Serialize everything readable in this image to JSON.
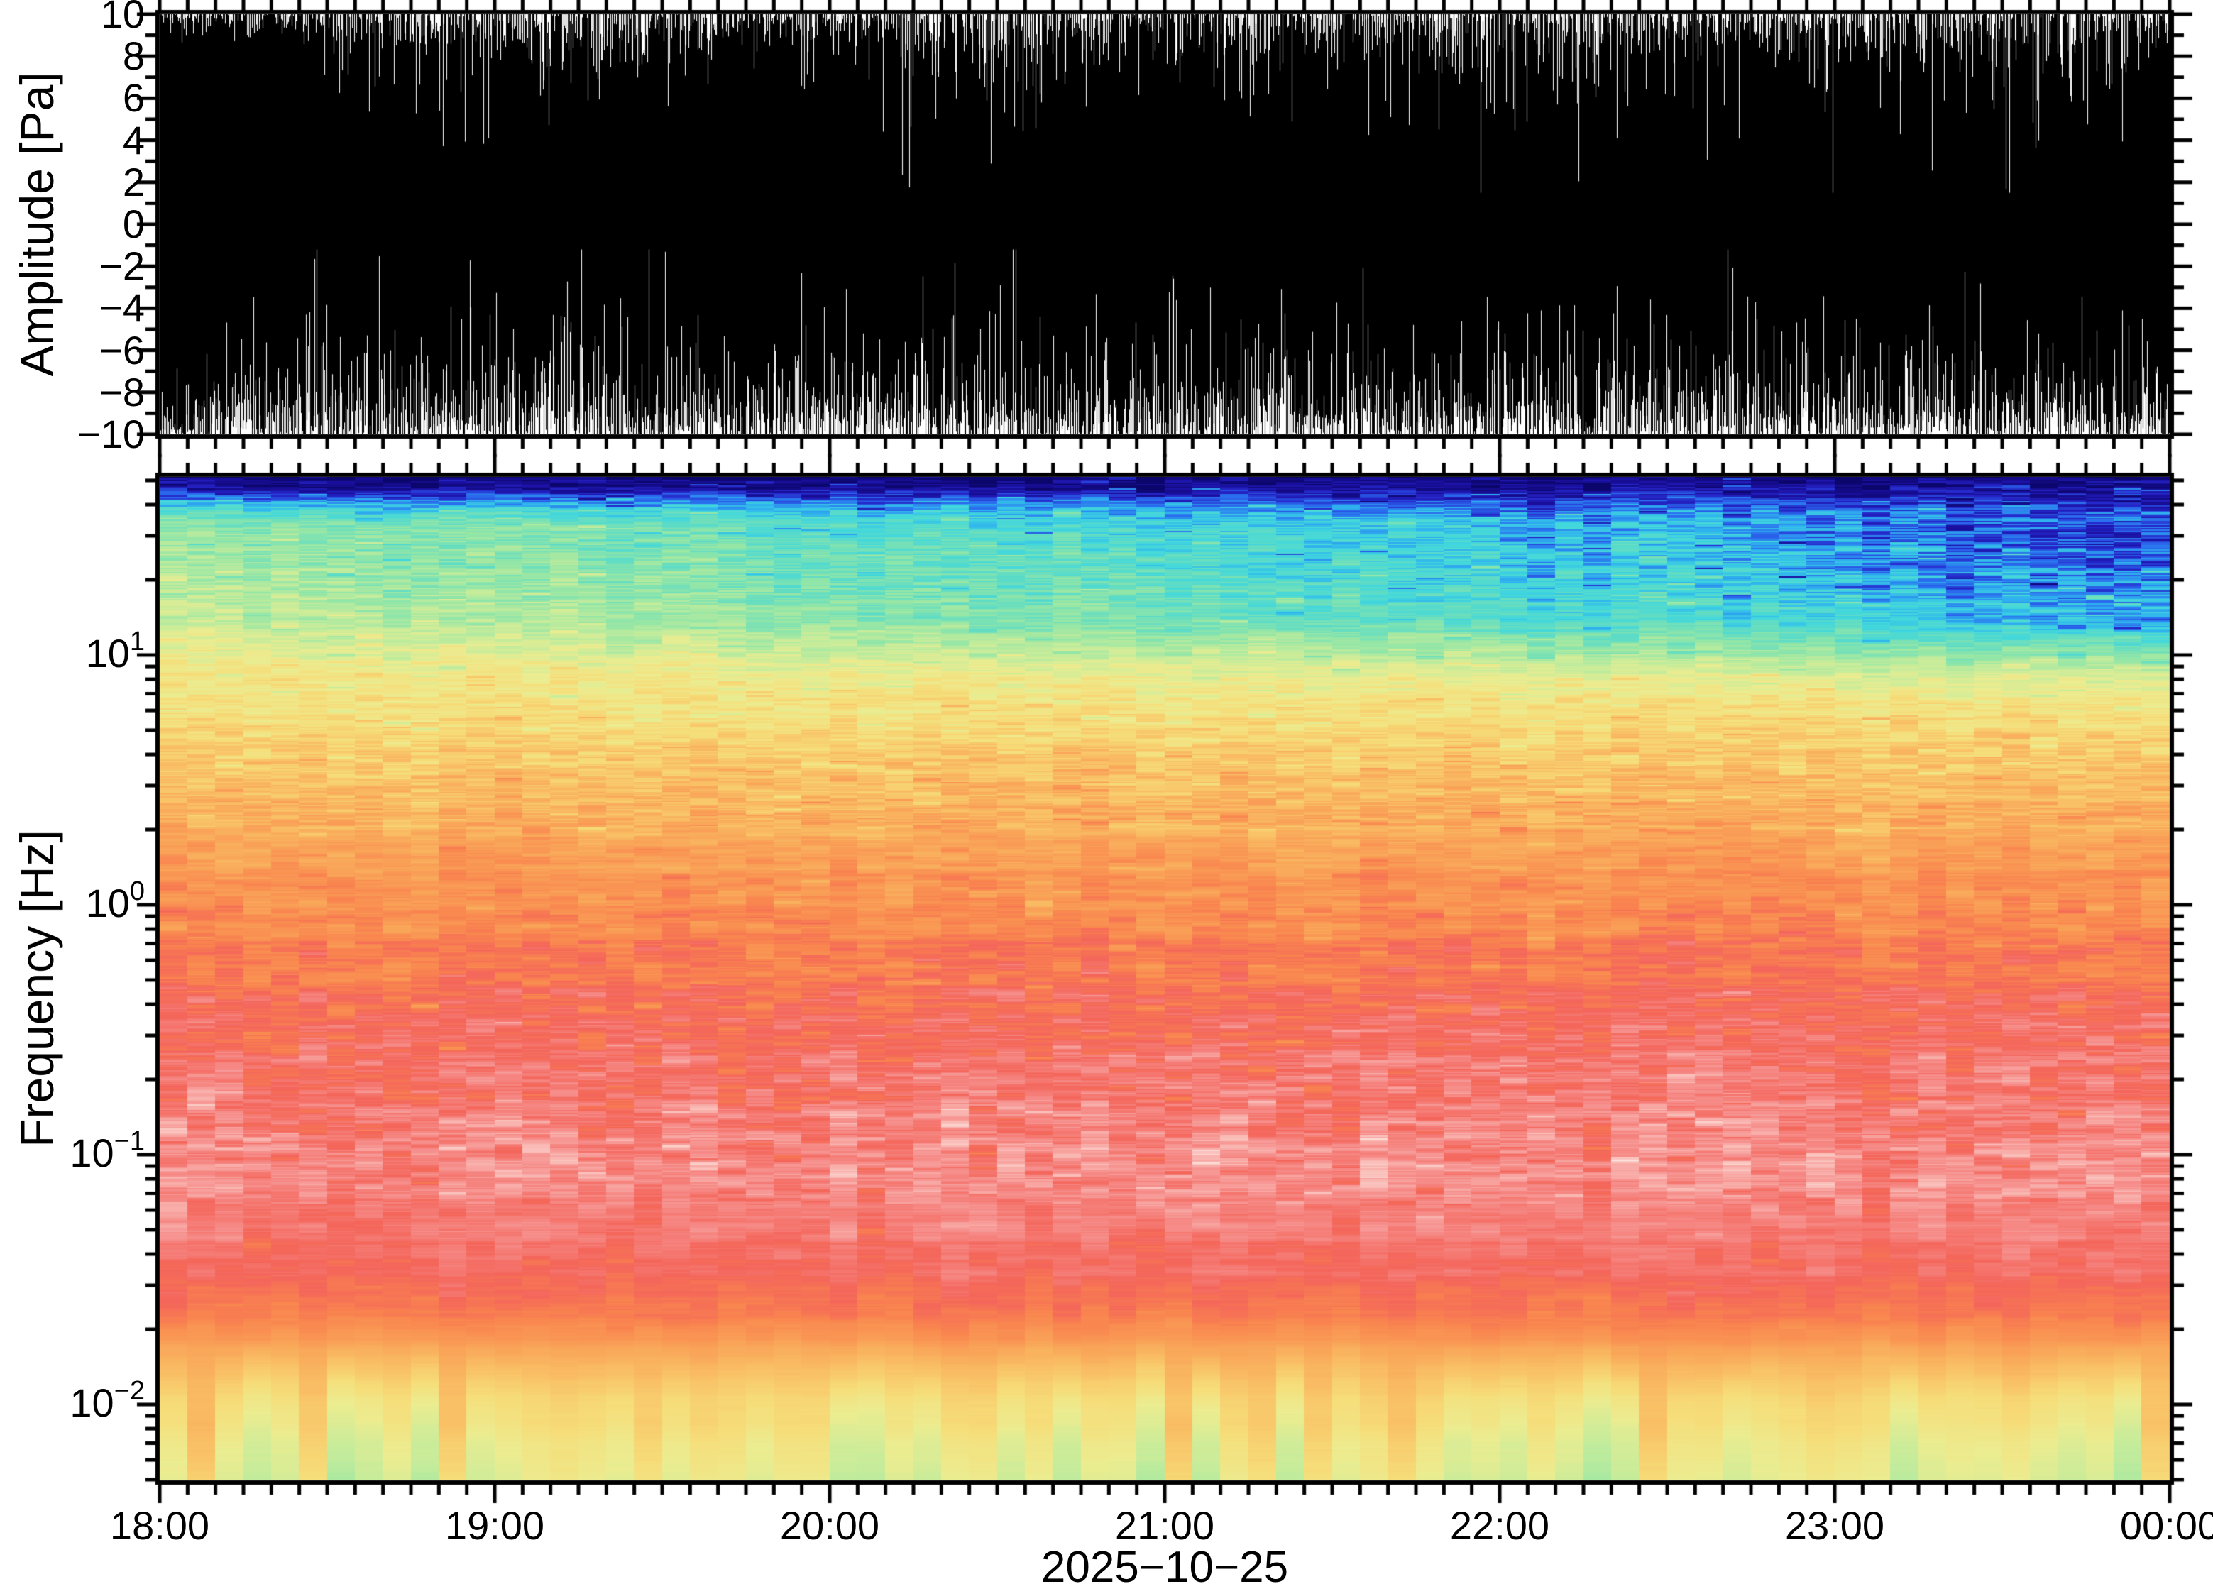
{
  "figure": {
    "background": "#ffffff",
    "frame_color": "#000000",
    "font_color": "#000000"
  },
  "waveform_panel": {
    "ylabel": "Amplitude [Pa]",
    "ylim": [
      -10,
      10
    ],
    "ytick_values": [
      10,
      8,
      6,
      4,
      2,
      0,
      -2,
      -4,
      -6,
      -8,
      -10
    ],
    "ytick_labels": [
      "10",
      "8",
      "6",
      "4",
      "2",
      "0",
      "−2",
      "−4",
      "−6",
      "−8",
      "−10"
    ],
    "y_minor_step": 1,
    "trace_color": "#000000"
  },
  "spectrogram_panel": {
    "ylabel": "Frequency [Hz]",
    "yscale": "log",
    "freq_range_hz": [
      0.005,
      51.6
    ],
    "ytick_values": [
      10,
      1,
      0.1,
      0.01
    ],
    "ytick_exponents": [
      {
        "base": "10",
        "exp": "1"
      },
      {
        "base": "10",
        "exp": "0"
      },
      {
        "base": "10",
        "exp": "−1"
      },
      {
        "base": "10",
        "exp": "−2"
      }
    ]
  },
  "time_axis": {
    "start": "18:00",
    "end": "00:00",
    "tick_labels": [
      "18:00",
      "19:00",
      "20:00",
      "21:00",
      "22:00",
      "23:00",
      "00:00"
    ],
    "minor_tick_minutes": 5,
    "date_label": "2025−10−25"
  },
  "chart_data": [
    {
      "type": "line",
      "panel": "waveform",
      "ylabel": "Amplitude [Pa]",
      "ylim": [
        -10,
        10
      ],
      "x_range_hours": [
        0,
        6
      ],
      "description": "Clipped broadband pressure waveform filling the panel; black envelope clipped at ±10 Pa with white needle gaps near the frame edges",
      "envelope_top_gap_pa": [
        [
          0,
          0.4
        ],
        [
          0.3,
          0.8
        ],
        [
          0.6,
          1.4
        ],
        [
          0.9,
          1.9
        ],
        [
          1.2,
          2.2
        ],
        [
          1.5,
          1.4
        ],
        [
          1.8,
          1.1
        ],
        [
          2.1,
          1.7
        ],
        [
          2.4,
          2.3
        ],
        [
          2.55,
          2.9
        ],
        [
          2.7,
          1.9
        ],
        [
          3.0,
          1.3
        ],
        [
          3.3,
          2.0
        ],
        [
          3.6,
          1.5
        ],
        [
          3.9,
          2.1
        ],
        [
          4.2,
          2.5
        ],
        [
          4.5,
          1.9
        ],
        [
          4.8,
          1.3
        ],
        [
          5.1,
          1.7
        ],
        [
          5.4,
          2.3
        ],
        [
          5.6,
          2.7
        ],
        [
          5.8,
          1.6
        ],
        [
          6.0,
          1.4
        ]
      ],
      "envelope_bottom_gap_pa": [
        [
          0,
          0.8
        ],
        [
          0.2,
          2.0
        ],
        [
          0.4,
          3.3
        ],
        [
          0.6,
          2.9
        ],
        [
          0.8,
          2.1
        ],
        [
          1.0,
          3.1
        ],
        [
          1.2,
          3.7
        ],
        [
          1.4,
          3.1
        ],
        [
          1.6,
          2.5
        ],
        [
          1.8,
          3.3
        ],
        [
          2.0,
          2.4
        ],
        [
          2.2,
          3.0
        ],
        [
          2.4,
          3.5
        ],
        [
          2.6,
          2.8
        ],
        [
          2.8,
          2.2
        ],
        [
          3.0,
          3.0
        ],
        [
          3.2,
          3.4
        ],
        [
          3.4,
          2.6
        ],
        [
          3.6,
          3.0
        ],
        [
          3.8,
          2.4
        ],
        [
          4.0,
          2.8
        ],
        [
          4.2,
          3.2
        ],
        [
          4.4,
          2.6
        ],
        [
          4.6,
          3.0
        ],
        [
          4.8,
          3.4
        ],
        [
          5.0,
          2.8
        ],
        [
          5.2,
          2.4
        ],
        [
          5.4,
          3.0
        ],
        [
          5.6,
          3.4
        ],
        [
          5.8,
          2.8
        ],
        [
          6.0,
          2.5
        ]
      ]
    },
    {
      "type": "heatmap",
      "panel": "spectrogram",
      "ylabel": "Frequency [Hz]",
      "yscale": "log",
      "log10_f_top": 1.713,
      "log10_f_bottom": -2.304,
      "time_bins": 72,
      "x_range_hours": [
        0,
        6
      ],
      "description": "Spectrogram, power highest (pink/white) around 0.1–1 Hz, red 1–3 Hz band, orange/yellow near 5–10 Hz, cyan/green above 10 Hz, navy band at top edge, red band near 0.02–0.03 Hz and yellow-green floor below 0.01 Hz",
      "colormap_stops": [
        {
          "v": 0.0,
          "c": "#0a0668"
        },
        {
          "v": 0.055,
          "c": "#1a0f9e"
        },
        {
          "v": 0.09,
          "c": "#2525c8"
        },
        {
          "v": 0.13,
          "c": "#2a6bee"
        },
        {
          "v": 0.17,
          "c": "#2fb2ee"
        },
        {
          "v": 0.21,
          "c": "#41d7dd"
        },
        {
          "v": 0.27,
          "c": "#63ddc2"
        },
        {
          "v": 0.34,
          "c": "#93e6a7"
        },
        {
          "v": 0.42,
          "c": "#c5ec9b"
        },
        {
          "v": 0.5,
          "c": "#ecec90"
        },
        {
          "v": 0.57,
          "c": "#f6dd79"
        },
        {
          "v": 0.64,
          "c": "#f9c166"
        },
        {
          "v": 0.71,
          "c": "#f9a458"
        },
        {
          "v": 0.78,
          "c": "#f9854f"
        },
        {
          "v": 0.84,
          "c": "#f4655a"
        },
        {
          "v": 0.895,
          "c": "#f68e8b"
        },
        {
          "v": 0.945,
          "c": "#fabdb8"
        },
        {
          "v": 1.0,
          "c": "#fde6df"
        }
      ],
      "power_profile": [
        [
          1.713,
          0.025
        ],
        [
          1.66,
          0.05
        ],
        [
          1.6,
          0.135
        ],
        [
          1.55,
          0.19
        ],
        [
          1.45,
          0.22
        ],
        [
          1.3,
          0.24
        ],
        [
          1.15,
          0.27
        ],
        [
          1.0,
          0.4
        ],
        [
          0.9,
          0.5
        ],
        [
          0.75,
          0.565
        ],
        [
          0.55,
          0.63
        ],
        [
          0.35,
          0.685
        ],
        [
          0.15,
          0.725
        ],
        [
          -0.05,
          0.765
        ],
        [
          -0.3,
          0.81
        ],
        [
          -0.6,
          0.85
        ],
        [
          -0.9,
          0.88
        ],
        [
          -1.1,
          0.885
        ],
        [
          -1.3,
          0.87
        ],
        [
          -1.5,
          0.84
        ],
        [
          -1.62,
          0.805
        ],
        [
          -1.72,
          0.75
        ],
        [
          -1.85,
          0.645
        ],
        [
          -2.0,
          0.55
        ],
        [
          -2.15,
          0.5
        ],
        [
          -2.304,
          0.46
        ]
      ],
      "noise_amp_profile": [
        [
          1.713,
          0.035
        ],
        [
          1.4,
          0.045
        ],
        [
          0.8,
          0.05
        ],
        [
          0.2,
          0.055
        ],
        [
          -0.3,
          0.06
        ],
        [
          -0.9,
          0.065
        ],
        [
          -1.3,
          0.05
        ],
        [
          -1.6,
          0.04
        ],
        [
          -1.8,
          0.025
        ],
        [
          -2.304,
          0.02
        ]
      ],
      "high_freq_time_trend": {
        "amp_start": 0.15,
        "amp_slope": -0.26,
        "band_log10f": [
          0.8,
          1.67
        ]
      }
    }
  ]
}
